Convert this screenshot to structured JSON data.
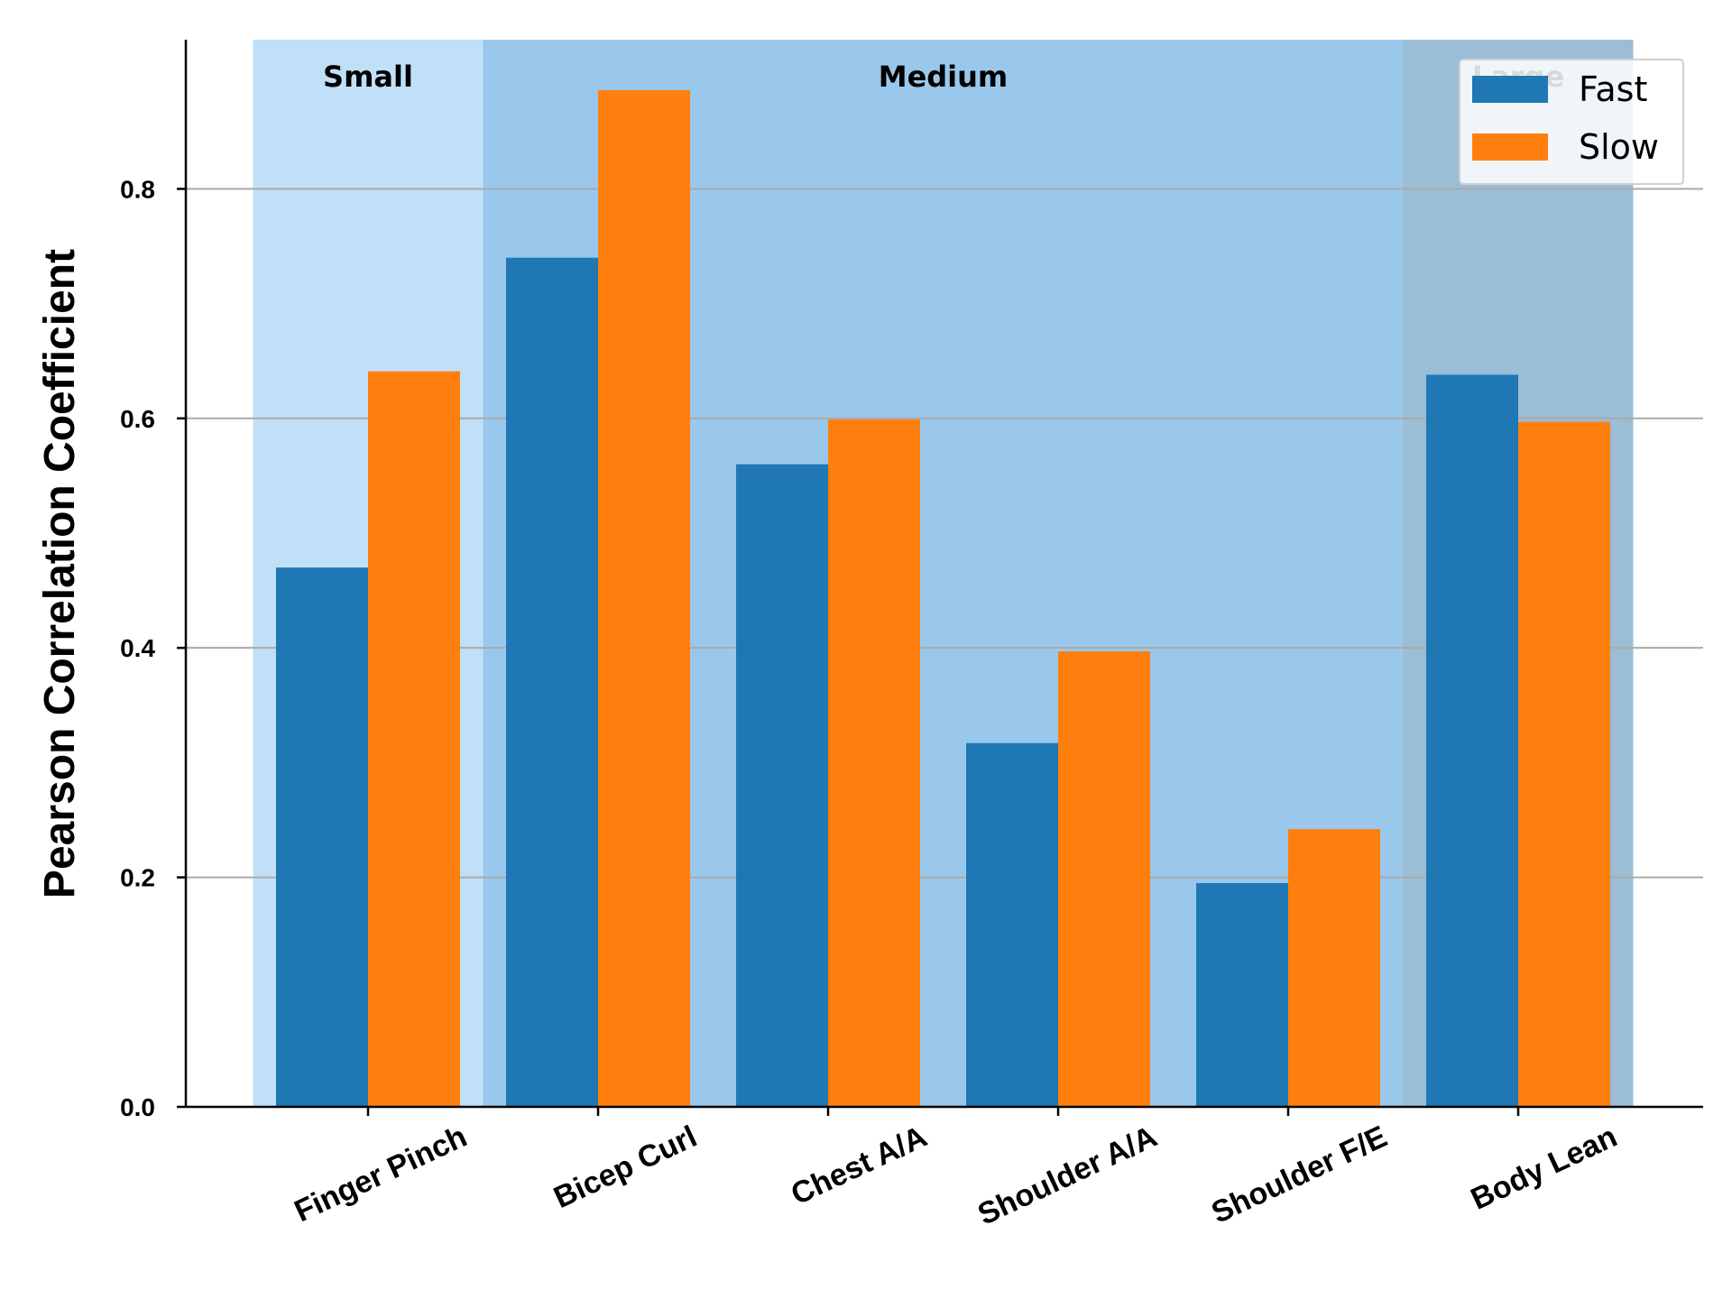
{
  "chart_data": {
    "type": "bar",
    "title": "",
    "xlabel": "",
    "ylabel": "Pearson Correlation Coefficient",
    "ylim": [
      0,
      0.93
    ],
    "yticks": [
      "0.0",
      "0.2",
      "0.4",
      "0.6",
      "0.8"
    ],
    "grid": "horizontal",
    "legend_position": "top-right",
    "categories": [
      "Finger Pinch",
      "Bicep Curl",
      "Chest A/A",
      "Shoulder A/A",
      "Shoulder F/E",
      "Body Lean"
    ],
    "series": [
      {
        "name": "Fast",
        "color": "#1f77b4",
        "values": [
          0.47,
          0.74,
          0.56,
          0.317,
          0.195,
          0.638
        ]
      },
      {
        "name": "Slow",
        "color": "#ff7f0e",
        "values": [
          0.641,
          0.886,
          0.599,
          0.397,
          0.242,
          0.597
        ]
      }
    ],
    "regions": [
      {
        "label": "Small",
        "from_category": 0,
        "to_category": 0,
        "color": "#c0e0f8"
      },
      {
        "label": "Medium",
        "from_category": 1,
        "to_category": 4,
        "color": "#9ac8ec"
      },
      {
        "label": "Large",
        "from_category": 5,
        "to_category": 5,
        "color": "#9bbdd6"
      }
    ]
  }
}
